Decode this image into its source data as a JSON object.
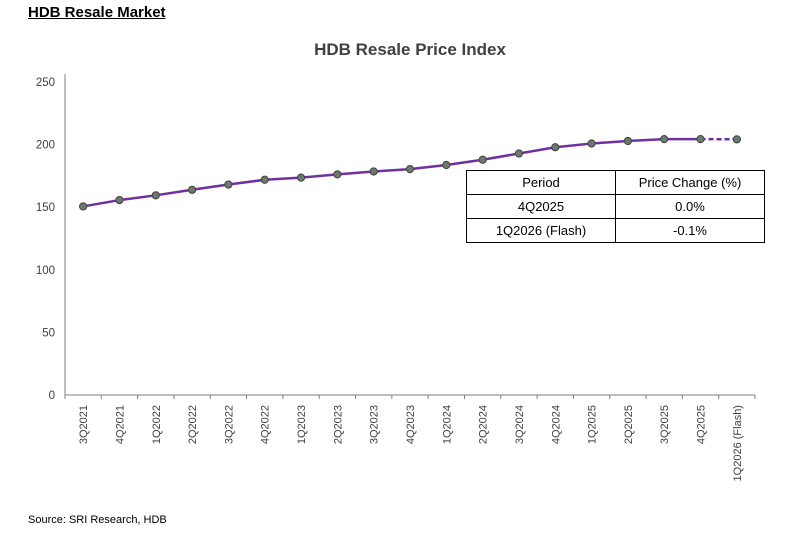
{
  "page": {
    "title": "HDB Resale Market",
    "source": "Source: SRI Research, HDB"
  },
  "chart_data": {
    "type": "line",
    "title": "HDB Resale Price Index",
    "categories": [
      "3Q2021",
      "4Q2021",
      "1Q2022",
      "2Q2022",
      "3Q2022",
      "4Q2022",
      "1Q2023",
      "2Q2023",
      "3Q2023",
      "4Q2023",
      "1Q2024",
      "2Q2024",
      "3Q2024",
      "4Q2024",
      "1Q2025",
      "2Q2025",
      "3Q2025",
      "4Q2025",
      "1Q2026 (Flash)"
    ],
    "series": [
      {
        "name": "HDB Resale Price Index",
        "values": [
          150.6,
          155.7,
          159.5,
          163.9,
          168.1,
          171.9,
          173.6,
          176.2,
          178.5,
          180.4,
          183.7,
          187.9,
          192.9,
          197.9,
          200.9,
          202.9,
          204.4,
          204.4,
          204.2
        ]
      }
    ],
    "ylim": [
      0,
      250
    ],
    "yticks": [
      0,
      50,
      100,
      150,
      200,
      250
    ],
    "xlabel": "",
    "ylabel": "",
    "grid": false,
    "legend_position": "none",
    "line_color": "#7030A0",
    "marker_color": "#6b7a6b",
    "marker_stroke": "#404040",
    "axis_color": "#7f7f7f",
    "label_color": "#404040",
    "dashed_from_index": 17
  },
  "table": {
    "headers": [
      "Period",
      "Price Change (%)"
    ],
    "rows": [
      [
        "4Q2025",
        "0.0%"
      ],
      [
        "1Q2026 (Flash)",
        "-0.1%"
      ]
    ]
  }
}
